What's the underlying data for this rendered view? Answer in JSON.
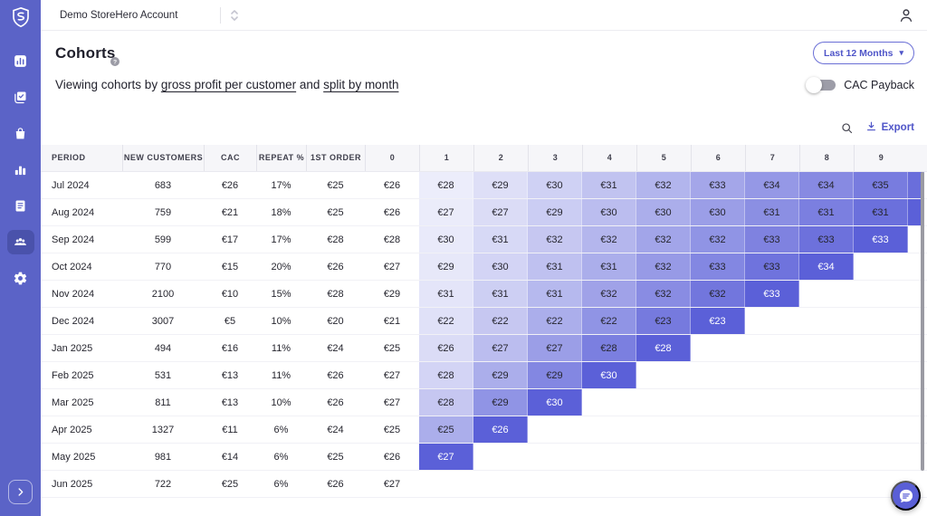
{
  "topbar": {
    "account_name": "Demo StoreHero Account"
  },
  "header": {
    "title": "Cohorts",
    "date_range_label": "Last 12 Months",
    "subtitle_prefix": "Viewing cohorts by ",
    "metric_link": "gross profit per customer",
    "connector": " and ",
    "split_link": "split by month",
    "cac_toggle_label": "CAC Payback",
    "cac_toggle_on": false,
    "export_label": "Export"
  },
  "sidebar": {
    "logo_icon": "storehero-shield",
    "collapse_icon": "chevron-right",
    "items": [
      {
        "id": "dashboard",
        "icon": "chart-square",
        "active": false
      },
      {
        "id": "reports",
        "icon": "clipboard-check",
        "active": false
      },
      {
        "id": "orders",
        "icon": "shopping-bag",
        "active": false
      },
      {
        "id": "analytics",
        "icon": "bar-chart",
        "active": false
      },
      {
        "id": "billing",
        "icon": "receipt",
        "active": false
      },
      {
        "id": "cohorts",
        "icon": "people",
        "active": true
      },
      {
        "id": "settings",
        "icon": "gear",
        "active": false
      }
    ]
  },
  "table": {
    "columns": [
      "PERIOD",
      "NEW CUSTOMERS",
      "CAC",
      "REPEAT %",
      "1ST ORDER",
      "0",
      "1",
      "2",
      "3",
      "4",
      "5",
      "6",
      "7",
      "8",
      "9"
    ],
    "rows": [
      {
        "period": "Jul 2024",
        "new_customers": "683",
        "cac": "€26",
        "repeat_pct": "17%",
        "first_order": "€25",
        "month_0": "€26",
        "cohort": [
          "€28",
          "€29",
          "€30",
          "€31",
          "€32",
          "€33",
          "€34",
          "€34",
          "€35"
        ],
        "months_since": 11,
        "partial_next": true
      },
      {
        "period": "Aug 2024",
        "new_customers": "759",
        "cac": "€21",
        "repeat_pct": "18%",
        "first_order": "€25",
        "month_0": "€26",
        "cohort": [
          "€27",
          "€27",
          "€29",
          "€30",
          "€30",
          "€30",
          "€31",
          "€31",
          "€31"
        ],
        "months_since": 10,
        "partial_next": true
      },
      {
        "period": "Sep 2024",
        "new_customers": "599",
        "cac": "€17",
        "repeat_pct": "17%",
        "first_order": "€28",
        "month_0": "€28",
        "cohort": [
          "€30",
          "€31",
          "€32",
          "€32",
          "€32",
          "€32",
          "€33",
          "€33",
          "€33"
        ],
        "months_since": 9,
        "partial_next": false
      },
      {
        "period": "Oct 2024",
        "new_customers": "770",
        "cac": "€15",
        "repeat_pct": "20%",
        "first_order": "€26",
        "month_0": "€27",
        "cohort": [
          "€29",
          "€30",
          "€31",
          "€31",
          "€32",
          "€33",
          "€33",
          "€34"
        ],
        "months_since": 8,
        "partial_next": false
      },
      {
        "period": "Nov 2024",
        "new_customers": "2100",
        "cac": "€10",
        "repeat_pct": "15%",
        "first_order": "€28",
        "month_0": "€29",
        "cohort": [
          "€31",
          "€31",
          "€31",
          "€32",
          "€32",
          "€32",
          "€33"
        ],
        "months_since": 7,
        "partial_next": false
      },
      {
        "period": "Dec 2024",
        "new_customers": "3007",
        "cac": "€5",
        "repeat_pct": "10%",
        "first_order": "€20",
        "month_0": "€21",
        "cohort": [
          "€22",
          "€22",
          "€22",
          "€22",
          "€23",
          "€23"
        ],
        "months_since": 6,
        "partial_next": false
      },
      {
        "period": "Jan 2025",
        "new_customers": "494",
        "cac": "€16",
        "repeat_pct": "11%",
        "first_order": "€24",
        "month_0": "€25",
        "cohort": [
          "€26",
          "€27",
          "€27",
          "€28",
          "€28"
        ],
        "months_since": 5,
        "partial_next": false
      },
      {
        "period": "Feb 2025",
        "new_customers": "531",
        "cac": "€13",
        "repeat_pct": "11%",
        "first_order": "€26",
        "month_0": "€27",
        "cohort": [
          "€28",
          "€29",
          "€29",
          "€30"
        ],
        "months_since": 4,
        "partial_next": false
      },
      {
        "period": "Mar 2025",
        "new_customers": "811",
        "cac": "€13",
        "repeat_pct": "10%",
        "first_order": "€26",
        "month_0": "€27",
        "cohort": [
          "€28",
          "€29",
          "€30"
        ],
        "months_since": 3,
        "partial_next": false
      },
      {
        "period": "Apr 2025",
        "new_customers": "1327",
        "cac": "€11",
        "repeat_pct": "6%",
        "first_order": "€24",
        "month_0": "€25",
        "cohort": [
          "€25",
          "€26"
        ],
        "months_since": 2,
        "partial_next": false
      },
      {
        "period": "May 2025",
        "new_customers": "981",
        "cac": "€14",
        "repeat_pct": "6%",
        "first_order": "€25",
        "month_0": "€26",
        "cohort": [
          "€27"
        ],
        "months_since": 1,
        "partial_next": false
      },
      {
        "period": "Jun 2025",
        "new_customers": "722",
        "cac": "€25",
        "repeat_pct": "6%",
        "first_order": "€26",
        "month_0": "€27",
        "cohort": [],
        "months_since": 0,
        "partial_next": false
      }
    ]
  },
  "colors": {
    "accent": "#4f55c8",
    "sidebar_bg": "#5b63c7",
    "sidebar_active_bg": "#4a52ab",
    "heat_light": "#fbfbfe",
    "heat_dark": "#5b60d8",
    "header_row_bg": "#f6f6f9"
  }
}
